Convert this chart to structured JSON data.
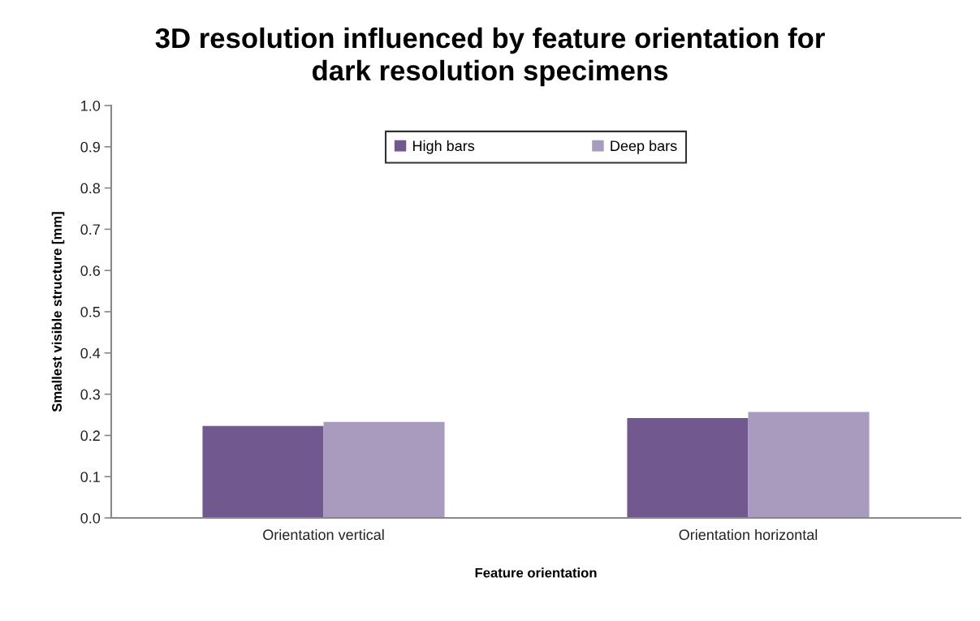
{
  "chart_data": {
    "type": "bar",
    "title": "3D resolution influenced by feature orientation for\ndark resolution specimens",
    "xlabel": "Feature orientation",
    "ylabel": "Smallest visible structure [mm]",
    "categories": [
      "Orientation vertical",
      "Orientation horizontal"
    ],
    "series": [
      {
        "name": "High bars",
        "color": "#71588f",
        "values": [
          0.223,
          0.242
        ]
      },
      {
        "name": "Deep bars",
        "color": "#a99bbd",
        "values": [
          0.233,
          0.257
        ]
      }
    ],
    "ylim": [
      0,
      1.0
    ],
    "yticks": [
      {
        "value": 0,
        "label": "0.0"
      },
      {
        "value": 0.1,
        "label": "0.1"
      },
      {
        "value": 0.2,
        "label": "0.2"
      },
      {
        "value": 0.3,
        "label": "0.3"
      },
      {
        "value": 0.4,
        "label": "0.4"
      },
      {
        "value": 0.5,
        "label": "0.5"
      },
      {
        "value": 0.6,
        "label": "0.6"
      },
      {
        "value": 0.7,
        "label": "0.7"
      },
      {
        "value": 0.8,
        "label": "0.8"
      },
      {
        "value": 0.9,
        "label": "0.9"
      },
      {
        "value": 1.0,
        "label": "1.0"
      }
    ],
    "legend": "top",
    "grid": false
  }
}
